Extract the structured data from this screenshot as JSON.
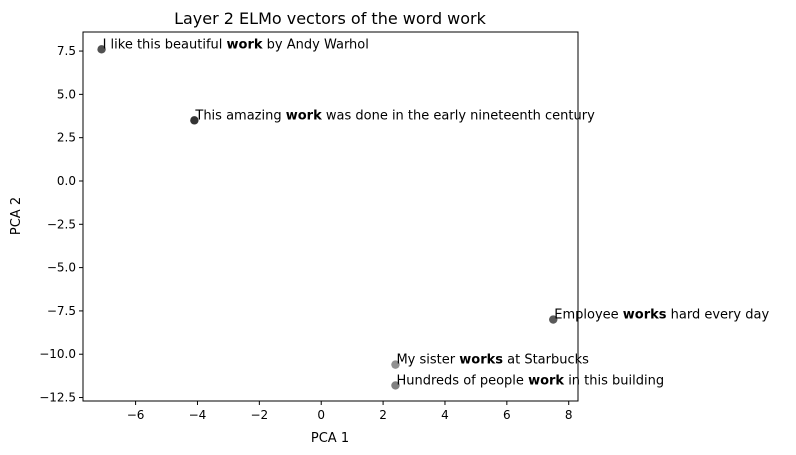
{
  "chart_data": {
    "type": "scatter",
    "title": "Layer 2 ELMo vectors of the word work",
    "xlabel": "PCA 1",
    "ylabel": "PCA 2",
    "xlim": [
      -7.7,
      8.3
    ],
    "ylim": [
      -12.7,
      8.6
    ],
    "xticks": [
      -6,
      -4,
      -2,
      0,
      2,
      4,
      6,
      8
    ],
    "yticks": [
      7.5,
      5.0,
      2.5,
      0.0,
      -2.5,
      -5.0,
      -7.5,
      -10.0,
      -12.5
    ],
    "xtick_labels": [
      "−6",
      "−4",
      "−2",
      "0",
      "2",
      "4",
      "6",
      "8"
    ],
    "ytick_labels": [
      "7.5",
      "5.0",
      "2.5",
      "0.0",
      "−2.5",
      "−5.0",
      "−7.5",
      "−10.0",
      "−12.5"
    ],
    "grid": false,
    "points": [
      {
        "x": -7.1,
        "y": 7.6,
        "color": "#484848",
        "label": [
          [
            "I like this beautiful ",
            false
          ],
          [
            "work",
            true
          ],
          [
            " by Andy Warhol",
            false
          ]
        ]
      },
      {
        "x": -4.1,
        "y": 3.5,
        "color": "#282828",
        "label": [
          [
            "This amazing ",
            false
          ],
          [
            "work",
            true
          ],
          [
            " was done in the early nineteenth century",
            false
          ]
        ]
      },
      {
        "x": 7.5,
        "y": -8.0,
        "color": "#505050",
        "label": [
          [
            "Employee ",
            false
          ],
          [
            "works",
            true
          ],
          [
            " hard every day",
            false
          ]
        ]
      },
      {
        "x": 2.4,
        "y": -10.6,
        "color": "#8c8c8c",
        "label": [
          [
            "My sister ",
            false
          ],
          [
            "works",
            true
          ],
          [
            " at Starbucks",
            false
          ]
        ]
      },
      {
        "x": 2.4,
        "y": -11.8,
        "color": "#7a7a7a",
        "label": [
          [
            "Hundreds of people ",
            false
          ],
          [
            "work",
            true
          ],
          [
            " in this building",
            false
          ]
        ]
      }
    ]
  }
}
